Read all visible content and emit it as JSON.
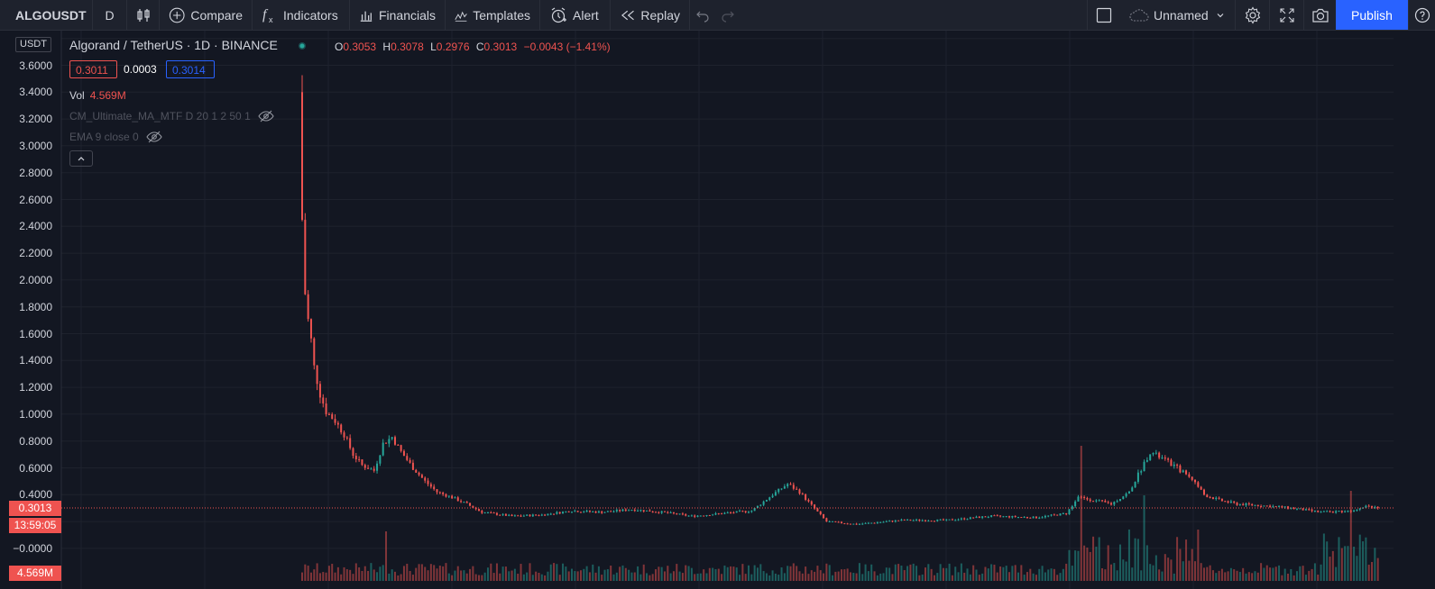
{
  "toolbar": {
    "symbol": "ALGOUSDT",
    "interval": "D",
    "compare": "Compare",
    "indicators": "Indicators",
    "financials": "Financials",
    "templates": "Templates",
    "alert": "Alert",
    "replay": "Replay",
    "layout_name": "Unnamed",
    "publish": "Publish"
  },
  "legend": {
    "title": "Algorand / TetherUS · 1D · BINANCE",
    "o_label": "O",
    "o": "0.3053",
    "h_label": "H",
    "h": "0.3078",
    "l_label": "L",
    "l": "0.2976",
    "c_label": "C",
    "c": "0.3013",
    "change": "−0.0043 (−1.41%)",
    "bid": "0.3011",
    "spread": "0.0003",
    "ask": "0.3014"
  },
  "indicators": {
    "vol_label": "Vol",
    "vol_value": "4.569M",
    "cm_ma": "CM_Ultimate_MA_MTF D 20 1 2 50 1",
    "ema": "EMA 9 close 0"
  },
  "axis": {
    "unit": "USDT",
    "ticks": [
      "3.6000",
      "3.4000",
      "3.2000",
      "3.0000",
      "2.8000",
      "2.6000",
      "2.4000",
      "2.2000",
      "2.0000",
      "1.8000",
      "1.6000",
      "1.4000",
      "1.2000",
      "1.0000",
      "0.8000",
      "0.6000",
      "0.4000",
      "−0.0000"
    ],
    "last_price": "0.3013",
    "countdown": "13:59:05",
    "volume_tag": "4.569M"
  },
  "colors": {
    "up": "#26a69a",
    "down": "#ef5350",
    "background": "#131722",
    "grid": "#1e222d",
    "accent": "#2962ff"
  },
  "chart_data": {
    "type": "candlestick",
    "symbol": "Algorand / TetherUS",
    "interval": "1D",
    "exchange": "BINANCE",
    "ylim": [
      -0.05,
      3.9
    ],
    "last_close": 0.3013,
    "grid": true,
    "approx_close_path": [
      [
        0,
        2.45
      ],
      [
        1,
        1.9
      ],
      [
        2,
        1.7
      ],
      [
        3,
        1.55
      ],
      [
        4,
        1.35
      ],
      [
        6,
        1.15
      ],
      [
        8,
        1.02
      ],
      [
        11,
        0.95
      ],
      [
        14,
        0.85
      ],
      [
        17,
        0.7
      ],
      [
        20,
        0.62
      ],
      [
        24,
        0.58
      ],
      [
        27,
        0.78
      ],
      [
        30,
        0.83
      ],
      [
        33,
        0.72
      ],
      [
        37,
        0.6
      ],
      [
        41,
        0.5
      ],
      [
        45,
        0.42
      ],
      [
        50,
        0.38
      ],
      [
        55,
        0.33
      ],
      [
        60,
        0.27
      ],
      [
        70,
        0.24
      ],
      [
        80,
        0.25
      ],
      [
        90,
        0.28
      ],
      [
        100,
        0.27
      ],
      [
        110,
        0.29
      ],
      [
        120,
        0.27
      ],
      [
        130,
        0.24
      ],
      [
        140,
        0.26
      ],
      [
        150,
        0.28
      ],
      [
        157,
        0.4
      ],
      [
        162,
        0.48
      ],
      [
        166,
        0.42
      ],
      [
        170,
        0.32
      ],
      [
        175,
        0.2
      ],
      [
        185,
        0.18
      ],
      [
        200,
        0.21
      ],
      [
        215,
        0.21
      ],
      [
        230,
        0.24
      ],
      [
        245,
        0.23
      ],
      [
        255,
        0.26
      ],
      [
        259,
        0.38
      ],
      [
        264,
        0.36
      ],
      [
        270,
        0.33
      ],
      [
        276,
        0.42
      ],
      [
        279,
        0.55
      ],
      [
        283,
        0.72
      ],
      [
        287,
        0.67
      ],
      [
        292,
        0.6
      ],
      [
        297,
        0.52
      ],
      [
        301,
        0.4
      ],
      [
        306,
        0.36
      ],
      [
        312,
        0.33
      ],
      [
        320,
        0.32
      ],
      [
        330,
        0.3
      ],
      [
        340,
        0.27
      ],
      [
        350,
        0.28
      ],
      [
        355,
        0.32
      ],
      [
        360,
        0.3013
      ]
    ]
  }
}
